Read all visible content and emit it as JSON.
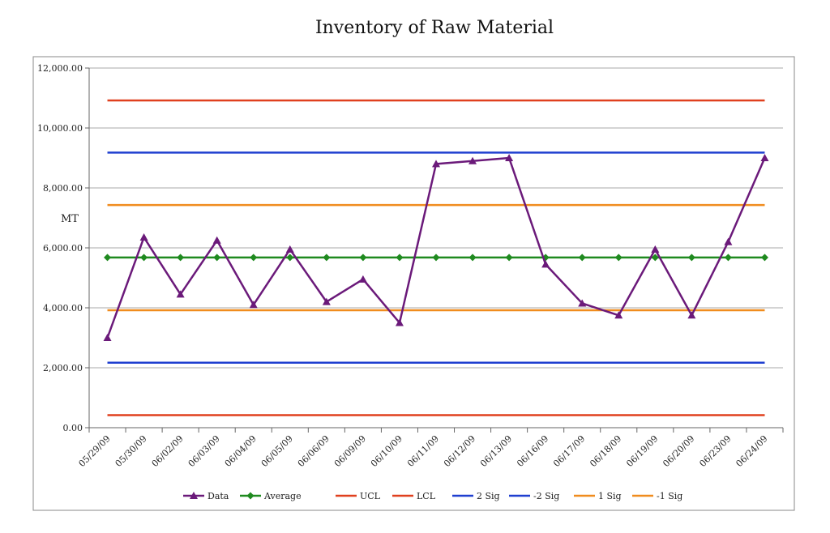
{
  "chart_data": {
    "type": "line",
    "title": "Inventory of Raw Material",
    "ylabel": "MT",
    "xlabel": "",
    "ylim": [
      0,
      12000
    ],
    "yticks": [
      "0.00",
      "2,000.00",
      "4,000.00",
      "6,000.00",
      "8,000.00",
      "10,000.00",
      "12,000.00"
    ],
    "grid": true,
    "legend_position": "bottom",
    "categories": [
      "05/29/09",
      "05/30/09",
      "06/02/09",
      "06/03/09",
      "06/04/09",
      "06/05/09",
      "06/06/09",
      "06/09/09",
      "06/10/09",
      "06/11/09",
      "06/12/09",
      "06/13/09",
      "06/16/09",
      "06/17/09",
      "06/18/09",
      "06/19/09",
      "06/20/09",
      "06/23/09",
      "06/24/09"
    ],
    "series": [
      {
        "name": "Data",
        "color": "#6b1a7a",
        "marker": "triangle",
        "values": [
          3000,
          6350,
          4450,
          6250,
          4100,
          5950,
          4200,
          4950,
          3500,
          8800,
          8900,
          9000,
          5450,
          4150,
          3750,
          5950,
          3750,
          6200,
          9000
        ]
      },
      {
        "name": "Average",
        "color": "#1f8a1f",
        "marker": "diamond",
        "values": [
          5680,
          5680,
          5680,
          5680,
          5680,
          5680,
          5680,
          5680,
          5680,
          5680,
          5680,
          5680,
          5680,
          5680,
          5680,
          5680,
          5680,
          5680,
          5680
        ]
      },
      {
        "name": "UCL",
        "color": "#e0401e",
        "marker": "none",
        "values": [
          10920,
          10920,
          10920,
          10920,
          10920,
          10920,
          10920,
          10920,
          10920,
          10920,
          10920,
          10920,
          10920,
          10920,
          10920,
          10920,
          10920,
          10920,
          10920
        ]
      },
      {
        "name": "LCL",
        "color": "#e0401e",
        "marker": "none",
        "values": [
          420,
          420,
          420,
          420,
          420,
          420,
          420,
          420,
          420,
          420,
          420,
          420,
          420,
          420,
          420,
          420,
          420,
          420,
          420
        ]
      },
      {
        "name": "2 Sig",
        "color": "#1f3fd0",
        "marker": "none",
        "values": [
          9180,
          9180,
          9180,
          9180,
          9180,
          9180,
          9180,
          9180,
          9180,
          9180,
          9180,
          9180,
          9180,
          9180,
          9180,
          9180,
          9180,
          9180,
          9180
        ]
      },
      {
        "name": "-2 Sig",
        "color": "#1f3fd0",
        "marker": "none",
        "values": [
          2170,
          2170,
          2170,
          2170,
          2170,
          2170,
          2170,
          2170,
          2170,
          2170,
          2170,
          2170,
          2170,
          2170,
          2170,
          2170,
          2170,
          2170,
          2170
        ]
      },
      {
        "name": "1 Sig",
        "color": "#f08c1e",
        "marker": "none",
        "values": [
          7430,
          7430,
          7430,
          7430,
          7430,
          7430,
          7430,
          7430,
          7430,
          7430,
          7430,
          7430,
          7430,
          7430,
          7430,
          7430,
          7430,
          7430,
          7430
        ]
      },
      {
        "name": "-1 Sig",
        "color": "#f08c1e",
        "marker": "none",
        "values": [
          3920,
          3920,
          3920,
          3920,
          3920,
          3920,
          3920,
          3920,
          3920,
          3920,
          3920,
          3920,
          3920,
          3920,
          3920,
          3920,
          3920,
          3920,
          3920
        ]
      }
    ]
  }
}
